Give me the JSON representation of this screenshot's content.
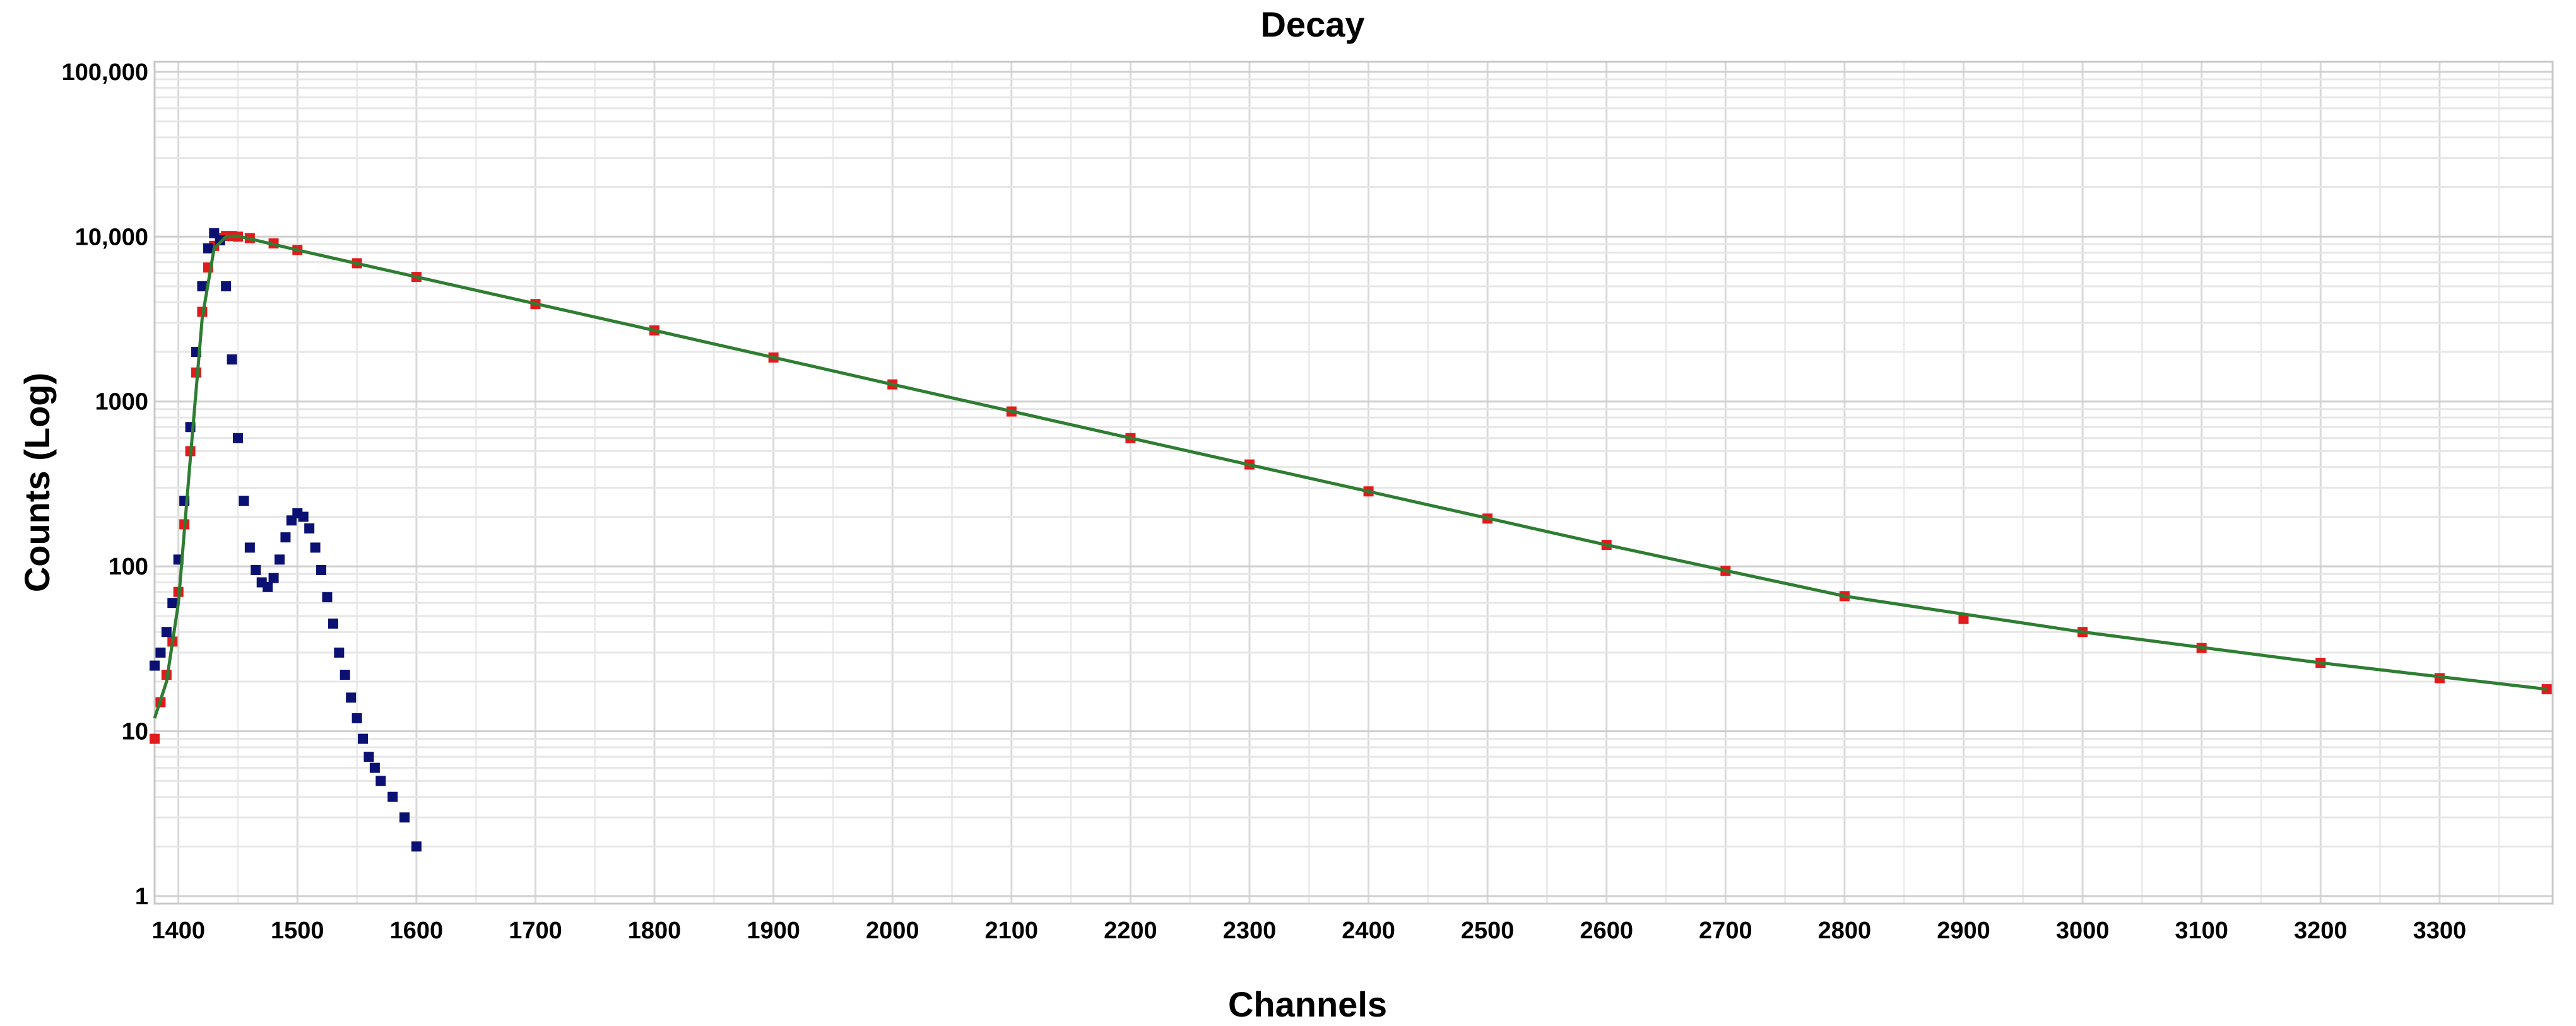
{
  "chart_data": {
    "type": "scatter",
    "title": "Decay",
    "xlabel": "Channels",
    "ylabel": "Counts (Log)",
    "xlim": [
      1380,
      3395
    ],
    "ylim": [
      0.9,
      115000
    ],
    "y_scale": "log",
    "grid": true,
    "legend": "none",
    "x_ticks": [
      1400,
      1500,
      1600,
      1700,
      1800,
      1900,
      2000,
      2100,
      2200,
      2300,
      2400,
      2500,
      2600,
      2700,
      2800,
      2900,
      3000,
      3100,
      3200,
      3300
    ],
    "x_tick_labels": [
      "1400",
      "1500",
      "1600",
      "1700",
      "1800",
      "1900",
      "2000",
      "2100",
      "2200",
      "2300",
      "2400",
      "2500",
      "2600",
      "2700",
      "2800",
      "2900",
      "3000",
      "3100",
      "3200",
      "3300"
    ],
    "y_ticks": [
      1,
      10,
      100,
      1000,
      10000,
      100000
    ],
    "y_tick_labels": [
      "1",
      "10",
      "100",
      "1000",
      "10,000",
      "100,000"
    ],
    "series": [
      {
        "color": "#e31a1c",
        "marker": "square",
        "x": [
          1380,
          1385,
          1390,
          1395,
          1400,
          1405,
          1410,
          1415,
          1420,
          1425,
          1430,
          1435,
          1440,
          1445,
          1450,
          1460,
          1480,
          1500,
          1550,
          1600,
          1700,
          1800,
          1900,
          2000,
          2100,
          2200,
          2300,
          2400,
          2500,
          2600,
          2700,
          2800,
          2900,
          3000,
          3100,
          3200,
          3300,
          3390
        ],
        "y": [
          9,
          15,
          22,
          35,
          70,
          180,
          500,
          1500,
          3500,
          6500,
          8800,
          9800,
          10100,
          10100,
          10000,
          9800,
          9100,
          8300,
          6900,
          5700,
          3900,
          2700,
          1850,
          1270,
          870,
          600,
          415,
          285,
          195,
          135,
          94,
          66,
          48,
          40,
          32,
          26,
          21,
          18
        ]
      },
      {
        "color": "#0a1172",
        "marker": "square",
        "x": [
          1380,
          1385,
          1390,
          1395,
          1400,
          1405,
          1410,
          1415,
          1420,
          1425,
          1430,
          1435,
          1440,
          1445,
          1450,
          1455,
          1460,
          1465,
          1470,
          1475,
          1480,
          1485,
          1490,
          1495,
          1500,
          1505,
          1510,
          1515,
          1520,
          1525,
          1530,
          1535,
          1540,
          1545,
          1550,
          1555,
          1560,
          1565,
          1570,
          1580,
          1590,
          1600
        ],
        "y": [
          25,
          30,
          40,
          60,
          110,
          250,
          700,
          2000,
          5000,
          8500,
          10500,
          9500,
          5000,
          1800,
          600,
          250,
          130,
          95,
          80,
          75,
          85,
          110,
          150,
          190,
          210,
          200,
          170,
          130,
          95,
          65,
          45,
          30,
          22,
          16,
          12,
          9,
          7,
          6,
          5,
          4,
          3,
          2
        ]
      },
      {
        "color": "#2e7d32",
        "marker": "line",
        "x": [
          1380,
          1390,
          1400,
          1410,
          1420,
          1430,
          1440,
          1450,
          1500,
          1600,
          1800,
          2000,
          2200,
          2400,
          2600,
          2800,
          3000,
          3200,
          3390
        ],
        "y": [
          12,
          20,
          60,
          450,
          3200,
          8500,
          10000,
          10100,
          8300,
          5700,
          2700,
          1270,
          600,
          285,
          135,
          66,
          40,
          26,
          18
        ]
      }
    ]
  }
}
